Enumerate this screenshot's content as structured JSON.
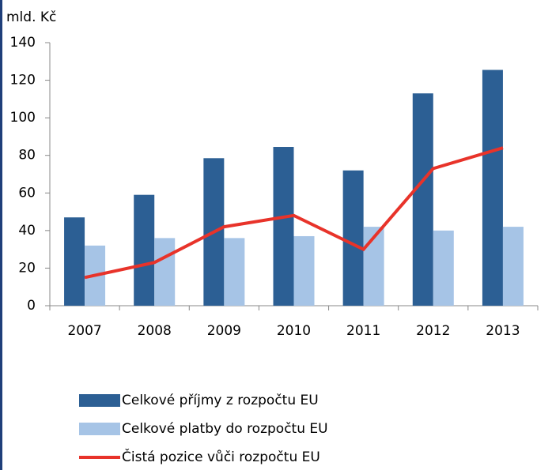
{
  "chart_data": {
    "type": "bar",
    "y_label": "mld. Kč",
    "categories": [
      "2007",
      "2008",
      "2009",
      "2010",
      "2011",
      "2012",
      "2013"
    ],
    "series": [
      {
        "name": "Celkové příjmy z rozpočtu EU",
        "type": "bar",
        "color": "#2c5f94",
        "values": [
          47,
          59,
          78.5,
          84.5,
          72,
          113,
          125.5
        ]
      },
      {
        "name": "Celkové platby do rozpočtu EU",
        "type": "bar",
        "color": "#a6c4e6",
        "values": [
          32,
          36,
          36,
          37,
          42,
          40,
          42
        ]
      },
      {
        "name": "Čistá pozice vůči rozpočtu EU",
        "type": "line",
        "color": "#e8332a",
        "values": [
          15,
          23,
          42,
          48,
          30,
          73,
          84
        ]
      }
    ],
    "ylim": [
      0,
      140
    ],
    "yticks": [
      0,
      20,
      40,
      60,
      80,
      100,
      120,
      140
    ]
  }
}
